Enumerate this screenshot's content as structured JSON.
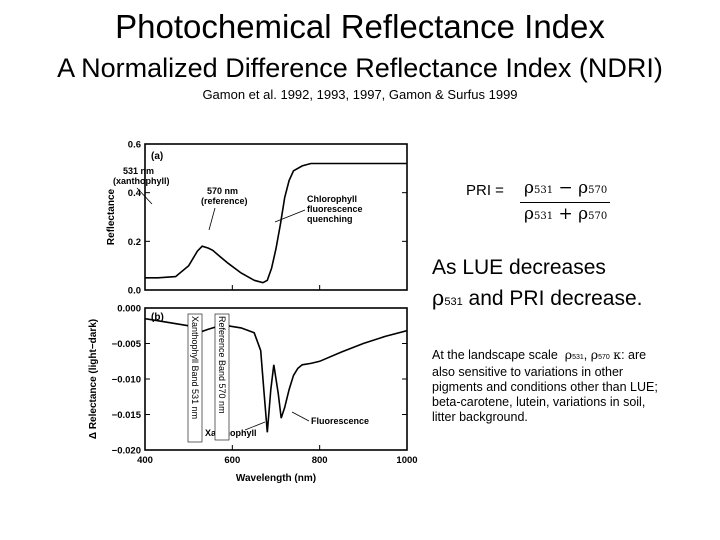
{
  "header": {
    "title": "Photochemical Reflectance Index",
    "subtitle": "A Normalized Difference Reflectance Index (NDRI)",
    "citation": "Gamon et al. 1992, 1993, 1997, Gamon & Surfus 1999"
  },
  "formula": {
    "label": "PRI =",
    "rho": "ρ",
    "b1": "531",
    "b2": "570",
    "minus": "−",
    "plus": "+"
  },
  "statement": {
    "line1": "As LUE decreases",
    "rho": "ρ",
    "sub": "531",
    "line2_rest": " and PRI decrease."
  },
  "note": {
    "lead": "At the landscape scale",
    "rho": "ρ",
    "s1": "531",
    "s2": "570",
    "kappa": "κ",
    "sep": ", ",
    "rest": " are also sensitive to variations in other pigments and conditions other than LUE; beta-carotene, lutein, variations in soil, litter background."
  },
  "chart_data": [
    {
      "type": "line",
      "panel_label": "(a)",
      "title": "",
      "xlabel": "",
      "ylabel": "Reflectance",
      "xlim": [
        400,
        1000
      ],
      "ylim": [
        0.0,
        0.6
      ],
      "yticks": [
        0.0,
        0.2,
        0.4,
        0.6
      ],
      "ytick_labels": [
        "0.0",
        "0.2",
        "0.4",
        "0.6"
      ],
      "series": [
        {
          "x": [
            400,
            430,
            470,
            500,
            520,
            531,
            545,
            555,
            570,
            590,
            620,
            650,
            670,
            680,
            690,
            700,
            710,
            720,
            730,
            740,
            760,
            780,
            800,
            850,
            900,
            950,
            1000
          ],
          "y": [
            0.05,
            0.05,
            0.055,
            0.1,
            0.16,
            0.18,
            0.172,
            0.163,
            0.14,
            0.11,
            0.07,
            0.04,
            0.03,
            0.04,
            0.09,
            0.17,
            0.27,
            0.38,
            0.45,
            0.49,
            0.51,
            0.52,
            0.52,
            0.52,
            0.52,
            0.52,
            0.52
          ]
        }
      ],
      "annotations": [
        {
          "text": "531 nm",
          "text2": "(xanthophyll)"
        },
        {
          "text": "570 nm",
          "text2": "(reference)"
        },
        {
          "text": "Chlorophyll",
          "text2": "fluorescence",
          "text3": "quenching"
        }
      ]
    },
    {
      "type": "line",
      "panel_label": "(b)",
      "title": "",
      "xlabel": "Wavelength (nm)",
      "ylabel": "Δ Relectance (light−dark)",
      "xlim": [
        400,
        1000
      ],
      "ylim": [
        -0.02,
        0.0
      ],
      "xticks": [
        400,
        600,
        800,
        1000
      ],
      "xtick_labels": [
        "400",
        "600",
        "800",
        "1000"
      ],
      "yticks": [
        0.0,
        -0.005,
        -0.01,
        -0.015,
        -0.02
      ],
      "ytick_labels": [
        "0.000",
        "−0.005",
        "−0.010",
        "−0.015",
        "−0.020"
      ],
      "series": [
        {
          "x": [
            400,
            450,
            500,
            520,
            531,
            545,
            560,
            570,
            590,
            620,
            650,
            665,
            672,
            680,
            688,
            695,
            705,
            712,
            720,
            730,
            740,
            750,
            760,
            780,
            800,
            850,
            900,
            950,
            1000
          ],
          "y": [
            -0.0015,
            -0.002,
            -0.0025,
            -0.003,
            -0.0033,
            -0.003,
            -0.0027,
            -0.0025,
            -0.0025,
            -0.0028,
            -0.0035,
            -0.006,
            -0.0115,
            -0.0175,
            -0.0115,
            -0.008,
            -0.012,
            -0.0155,
            -0.014,
            -0.0115,
            -0.0095,
            -0.0085,
            -0.008,
            -0.0078,
            -0.0075,
            -0.0062,
            -0.005,
            -0.004,
            -0.0032
          ]
        }
      ],
      "annotations": [
        {
          "text": "Xanthophyll Band 531 nm"
        },
        {
          "text": "Reference Band 570 nm"
        },
        {
          "text": "Fluorescence"
        },
        {
          "text": "Xanthophyll"
        }
      ]
    }
  ]
}
